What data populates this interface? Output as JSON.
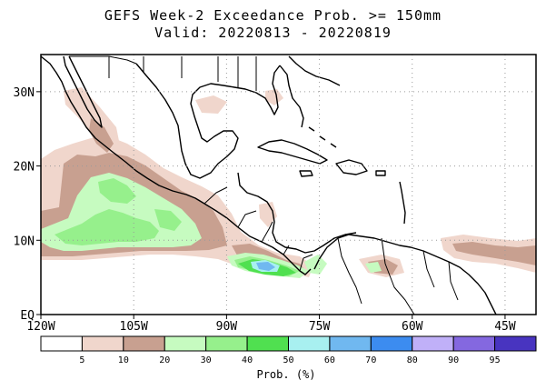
{
  "title": {
    "line1": "GEFS Week-2 Exceedance Prob. >= 150mm",
    "line2": "Valid: 20220813 - 20220819"
  },
  "axes": {
    "x_ticks": [
      {
        "lon": -120,
        "label": "120W"
      },
      {
        "lon": -105,
        "label": "105W"
      },
      {
        "lon": -90,
        "label": "90W"
      },
      {
        "lon": -75,
        "label": "75W"
      },
      {
        "lon": -60,
        "label": "60W"
      },
      {
        "lon": -45,
        "label": "45W"
      }
    ],
    "y_ticks": [
      {
        "lat": 0,
        "label": "EQ"
      },
      {
        "lat": 10,
        "label": "10N"
      },
      {
        "lat": 20,
        "label": "20N"
      },
      {
        "lat": 30,
        "label": "30N"
      }
    ],
    "lon_range": [
      -120,
      -40
    ],
    "lat_range": [
      0,
      35
    ]
  },
  "colorbar": {
    "label": "Prob. (%)",
    "ticks": [
      "5",
      "10",
      "20",
      "30",
      "40",
      "50",
      "60",
      "70",
      "80",
      "90",
      "95"
    ],
    "colors": [
      "#ffffff",
      "#f0d6cc",
      "#c8a090",
      "#c6fbc0",
      "#96f08c",
      "#50e050",
      "#a8f0f0",
      "#70b8f0",
      "#3c8cf0",
      "#c0b0f8",
      "#8468e0",
      "#4834c0"
    ]
  },
  "colors": {
    "ocean": "#ffffff",
    "coast": "#000000",
    "grid": "#9a9a9a"
  }
}
